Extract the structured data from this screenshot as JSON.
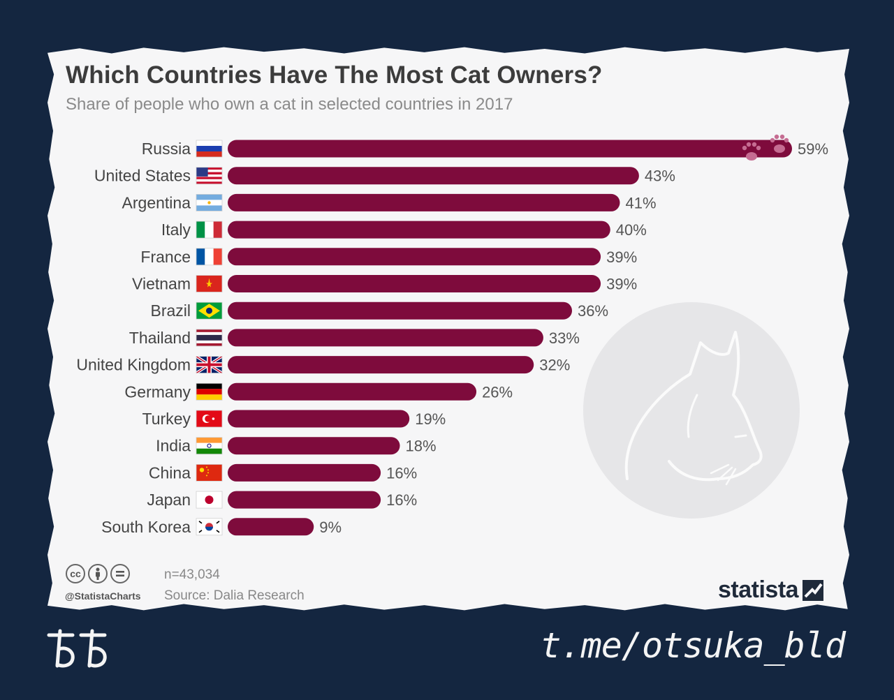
{
  "card": {
    "title": "Which Countries Have The Most Cat Owners?",
    "subtitle": "Share of people who own a cat in selected countries in 2017"
  },
  "chart_data": {
    "type": "bar",
    "orientation": "horizontal",
    "title": "Which Countries Have The Most Cat Owners?",
    "subtitle": "Share of people who own a cat in selected countries in 2017",
    "unit": "%",
    "categories": [
      "Russia",
      "United States",
      "Argentina",
      "Italy",
      "France",
      "Vietnam",
      "Brazil",
      "Thailand",
      "United Kingdom",
      "Germany",
      "Turkey",
      "India",
      "China",
      "Japan",
      "South Korea"
    ],
    "values": [
      59,
      43,
      41,
      40,
      39,
      39,
      36,
      33,
      32,
      26,
      19,
      18,
      16,
      16,
      9
    ],
    "value_labels": [
      "59%",
      "43%",
      "41%",
      "40%",
      "39%",
      "39%",
      "36%",
      "33%",
      "32%",
      "26%",
      "19%",
      "18%",
      "16%",
      "16%",
      "9%"
    ],
    "flag_icons": [
      "flag-russia-icon",
      "flag-united-states-icon",
      "flag-argentina-icon",
      "flag-italy-icon",
      "flag-france-icon",
      "flag-vietnam-icon",
      "flag-brazil-icon",
      "flag-thailand-icon",
      "flag-united-kingdom-icon",
      "flag-germany-icon",
      "flag-turkey-icon",
      "flag-india-icon",
      "flag-china-icon",
      "flag-japan-icon",
      "flag-south-korea-icon"
    ],
    "xlim": [
      0,
      59
    ],
    "grid": false,
    "legend": "none",
    "bar_color": "#7e0b3c"
  },
  "footer": {
    "license_icons": [
      "creative-commons-icon",
      "attribution-icon",
      "no-derivatives-icon"
    ],
    "cc_text": "cc",
    "handle": "@StatistaCharts",
    "sample_size": "n=43,034",
    "source": "Source: Dalia Research",
    "brand": "statista"
  },
  "overlay": {
    "corner_logo_icon": "double-letter-logo-icon",
    "watermark": "t.me/otsuka_bld"
  },
  "colors": {
    "background": "#142640",
    "card": "#f6f6f7",
    "bar": "#7e0b3c",
    "paw": "#c56c92",
    "cat_circle": "#e6e6e8"
  }
}
